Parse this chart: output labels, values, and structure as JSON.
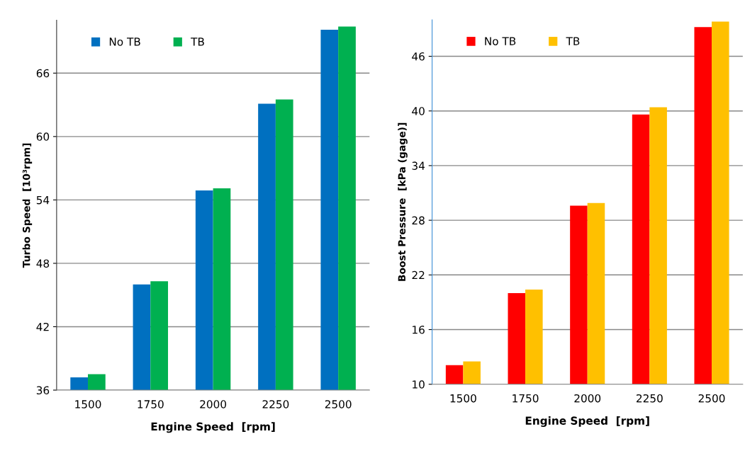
{
  "chart_data": [
    {
      "type": "bar",
      "categories": [
        "1500",
        "1750",
        "2000",
        "2250",
        "2500"
      ],
      "xlabel": "Engine Speed  [rpm]",
      "ylabel": "Turbo Speed  [10³rpm]",
      "ylim": [
        36,
        71
      ],
      "yticks": [
        36,
        42,
        48,
        54,
        60,
        66
      ],
      "grid": "y",
      "legend": "top left",
      "series": [
        {
          "name": "No TB",
          "color": "#0070c0",
          "values": [
            37.2,
            46.0,
            54.9,
            63.1,
            70.1
          ]
        },
        {
          "name": "TB",
          "color": "#00b050",
          "values": [
            37.5,
            46.3,
            55.1,
            63.5,
            70.4
          ]
        }
      ]
    },
    {
      "type": "bar",
      "categories": [
        "1500",
        "1750",
        "2000",
        "2250",
        "2500"
      ],
      "xlabel": "Engine Speed  [rpm]",
      "ylabel": "Boost Pressure  [kPa (gage)]",
      "ylim": [
        10,
        50
      ],
      "yticks": [
        10,
        16,
        22,
        28,
        34,
        40,
        46
      ],
      "grid": "y",
      "legend": "top left",
      "series": [
        {
          "name": "No TB",
          "color": "#ff0000",
          "values": [
            12.1,
            20.0,
            29.6,
            39.6,
            49.2
          ]
        },
        {
          "name": "TB",
          "color": "#ffc000",
          "values": [
            12.5,
            20.4,
            29.9,
            40.4,
            49.8
          ]
        }
      ]
    }
  ]
}
